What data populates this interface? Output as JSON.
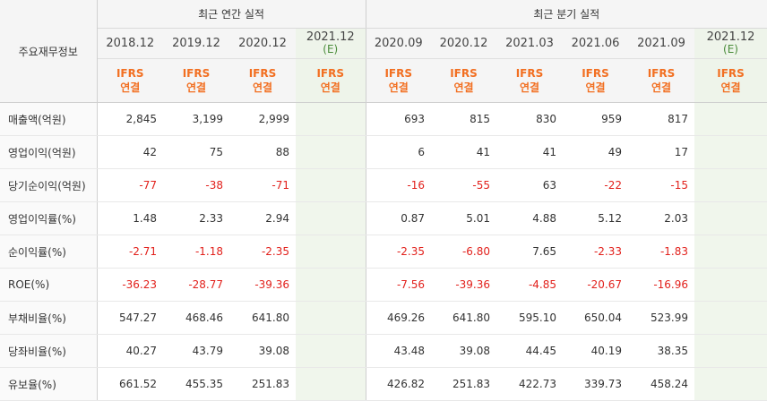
{
  "table": {
    "corner_label": "주요재무정보",
    "annual_group_label": "최근 연간 실적",
    "quarter_group_label": "최근 분기 실적",
    "periods": [
      {
        "label": "2018.12",
        "estimate": "",
        "ifrs": "IFRS",
        "basis": "연결"
      },
      {
        "label": "2019.12",
        "estimate": "",
        "ifrs": "IFRS",
        "basis": "연결"
      },
      {
        "label": "2020.12",
        "estimate": "",
        "ifrs": "IFRS",
        "basis": "연결"
      },
      {
        "label": "2021.12",
        "estimate": "(E)",
        "ifrs": "IFRS",
        "basis": "연결"
      },
      {
        "label": "2020.09",
        "estimate": "",
        "ifrs": "IFRS",
        "basis": "연결"
      },
      {
        "label": "2020.12",
        "estimate": "",
        "ifrs": "IFRS",
        "basis": "연결"
      },
      {
        "label": "2021.03",
        "estimate": "",
        "ifrs": "IFRS",
        "basis": "연결"
      },
      {
        "label": "2021.06",
        "estimate": "",
        "ifrs": "IFRS",
        "basis": "연결"
      },
      {
        "label": "2021.09",
        "estimate": "",
        "ifrs": "IFRS",
        "basis": "연결"
      },
      {
        "label": "2021.12",
        "estimate": "(E)",
        "ifrs": "IFRS",
        "basis": "연결"
      }
    ],
    "rows": [
      {
        "label": "매출액(억원)",
        "values": [
          "2,845",
          "3,199",
          "2,999",
          "",
          "693",
          "815",
          "830",
          "959",
          "817",
          ""
        ]
      },
      {
        "label": "영업이익(억원)",
        "values": [
          "42",
          "75",
          "88",
          "",
          "6",
          "41",
          "41",
          "49",
          "17",
          ""
        ]
      },
      {
        "label": "당기순이익(억원)",
        "values": [
          "-77",
          "-38",
          "-71",
          "",
          "-16",
          "-55",
          "63",
          "-22",
          "-15",
          ""
        ]
      },
      {
        "label": "영업이익률(%)",
        "values": [
          "1.48",
          "2.33",
          "2.94",
          "",
          "0.87",
          "5.01",
          "4.88",
          "5.12",
          "2.03",
          ""
        ]
      },
      {
        "label": "순이익률(%)",
        "values": [
          "-2.71",
          "-1.18",
          "-2.35",
          "",
          "-2.35",
          "-6.80",
          "7.65",
          "-2.33",
          "-1.83",
          ""
        ]
      },
      {
        "label": "ROE(%)",
        "values": [
          "-36.23",
          "-28.77",
          "-39.36",
          "",
          "-7.56",
          "-39.36",
          "-4.85",
          "-20.67",
          "-16.96",
          ""
        ]
      },
      {
        "label": "부채비율(%)",
        "values": [
          "547.27",
          "468.46",
          "641.80",
          "",
          "469.26",
          "641.80",
          "595.10",
          "650.04",
          "523.99",
          ""
        ]
      },
      {
        "label": "당좌비율(%)",
        "values": [
          "40.27",
          "43.79",
          "39.08",
          "",
          "43.48",
          "39.08",
          "44.45",
          "40.19",
          "38.35",
          ""
        ]
      },
      {
        "label": "유보율(%)",
        "values": [
          "661.52",
          "455.35",
          "251.83",
          "",
          "426.82",
          "251.83",
          "422.73",
          "339.73",
          "458.24",
          ""
        ]
      }
    ]
  },
  "colors": {
    "ifrs_accent": "#f26f21",
    "negative": "#e2211c",
    "estimate_bg": "#f0f6ec",
    "estimate_label": "#4a8c3a"
  }
}
